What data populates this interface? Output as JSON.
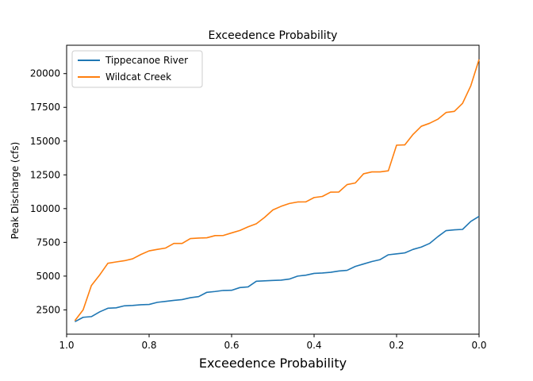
{
  "chart_data": {
    "type": "line",
    "title": "Exceedence Probability",
    "xlabel": "Exceedence Probability",
    "ylabel": "Peak Discharge (cfs)",
    "xlim": [
      1.0,
      0.0
    ],
    "ylim": [
      700,
      22100
    ],
    "x_ticks": [
      1.0,
      0.8,
      0.6,
      0.4,
      0.2,
      0.0
    ],
    "x_tick_labels": [
      "1.0",
      "0.8",
      "0.6",
      "0.4",
      "0.2",
      "0.0"
    ],
    "y_ticks": [
      2500,
      5000,
      7500,
      10000,
      12500,
      15000,
      17500,
      20000
    ],
    "y_tick_labels": [
      "2500",
      "5000",
      "7500",
      "10000",
      "12500",
      "15000",
      "17500",
      "20000"
    ],
    "grid": false,
    "legend_position": "upper-left",
    "series": [
      {
        "name": "Tippecanoe River",
        "color": "#1f77b4",
        "points": [
          [
            0.98,
            1620
          ],
          [
            0.96,
            1950
          ],
          [
            0.94,
            2000
          ],
          [
            0.92,
            2350
          ],
          [
            0.9,
            2620
          ],
          [
            0.88,
            2650
          ],
          [
            0.86,
            2800
          ],
          [
            0.84,
            2830
          ],
          [
            0.82,
            2880
          ],
          [
            0.8,
            2900
          ],
          [
            0.78,
            3060
          ],
          [
            0.76,
            3130
          ],
          [
            0.74,
            3200
          ],
          [
            0.72,
            3260
          ],
          [
            0.7,
            3400
          ],
          [
            0.68,
            3480
          ],
          [
            0.66,
            3800
          ],
          [
            0.64,
            3860
          ],
          [
            0.62,
            3940
          ],
          [
            0.6,
            3950
          ],
          [
            0.58,
            4150
          ],
          [
            0.56,
            4200
          ],
          [
            0.54,
            4620
          ],
          [
            0.52,
            4650
          ],
          [
            0.5,
            4680
          ],
          [
            0.48,
            4700
          ],
          [
            0.46,
            4780
          ],
          [
            0.44,
            5000
          ],
          [
            0.42,
            5070
          ],
          [
            0.4,
            5200
          ],
          [
            0.38,
            5230
          ],
          [
            0.36,
            5280
          ],
          [
            0.34,
            5380
          ],
          [
            0.32,
            5430
          ],
          [
            0.3,
            5720
          ],
          [
            0.28,
            5900
          ],
          [
            0.26,
            6080
          ],
          [
            0.24,
            6220
          ],
          [
            0.22,
            6580
          ],
          [
            0.2,
            6650
          ],
          [
            0.18,
            6720
          ],
          [
            0.16,
            6980
          ],
          [
            0.14,
            7150
          ],
          [
            0.12,
            7420
          ],
          [
            0.1,
            7920
          ],
          [
            0.08,
            8370
          ],
          [
            0.06,
            8430
          ],
          [
            0.04,
            8460
          ],
          [
            0.02,
            9050
          ],
          [
            0.0,
            9430
          ]
        ]
      },
      {
        "name": "Wildcat Creek",
        "color": "#ff7f0e",
        "points": [
          [
            0.98,
            1700
          ],
          [
            0.96,
            2500
          ],
          [
            0.94,
            4300
          ],
          [
            0.92,
            5080
          ],
          [
            0.9,
            5950
          ],
          [
            0.88,
            6050
          ],
          [
            0.86,
            6140
          ],
          [
            0.84,
            6280
          ],
          [
            0.82,
            6600
          ],
          [
            0.8,
            6870
          ],
          [
            0.78,
            6980
          ],
          [
            0.76,
            7080
          ],
          [
            0.74,
            7420
          ],
          [
            0.72,
            7420
          ],
          [
            0.7,
            7780
          ],
          [
            0.68,
            7820
          ],
          [
            0.66,
            7840
          ],
          [
            0.64,
            8000
          ],
          [
            0.62,
            8010
          ],
          [
            0.6,
            8200
          ],
          [
            0.58,
            8380
          ],
          [
            0.56,
            8650
          ],
          [
            0.54,
            8880
          ],
          [
            0.52,
            9350
          ],
          [
            0.5,
            9900
          ],
          [
            0.48,
            10170
          ],
          [
            0.46,
            10380
          ],
          [
            0.44,
            10490
          ],
          [
            0.42,
            10500
          ],
          [
            0.4,
            10820
          ],
          [
            0.38,
            10900
          ],
          [
            0.36,
            11220
          ],
          [
            0.34,
            11230
          ],
          [
            0.32,
            11780
          ],
          [
            0.3,
            11900
          ],
          [
            0.28,
            12580
          ],
          [
            0.26,
            12720
          ],
          [
            0.24,
            12720
          ],
          [
            0.22,
            12800
          ],
          [
            0.2,
            14700
          ],
          [
            0.18,
            14720
          ],
          [
            0.16,
            15500
          ],
          [
            0.14,
            16100
          ],
          [
            0.12,
            16320
          ],
          [
            0.1,
            16620
          ],
          [
            0.08,
            17120
          ],
          [
            0.06,
            17200
          ],
          [
            0.04,
            17800
          ],
          [
            0.02,
            19100
          ],
          [
            0.0,
            21050
          ]
        ]
      }
    ]
  }
}
